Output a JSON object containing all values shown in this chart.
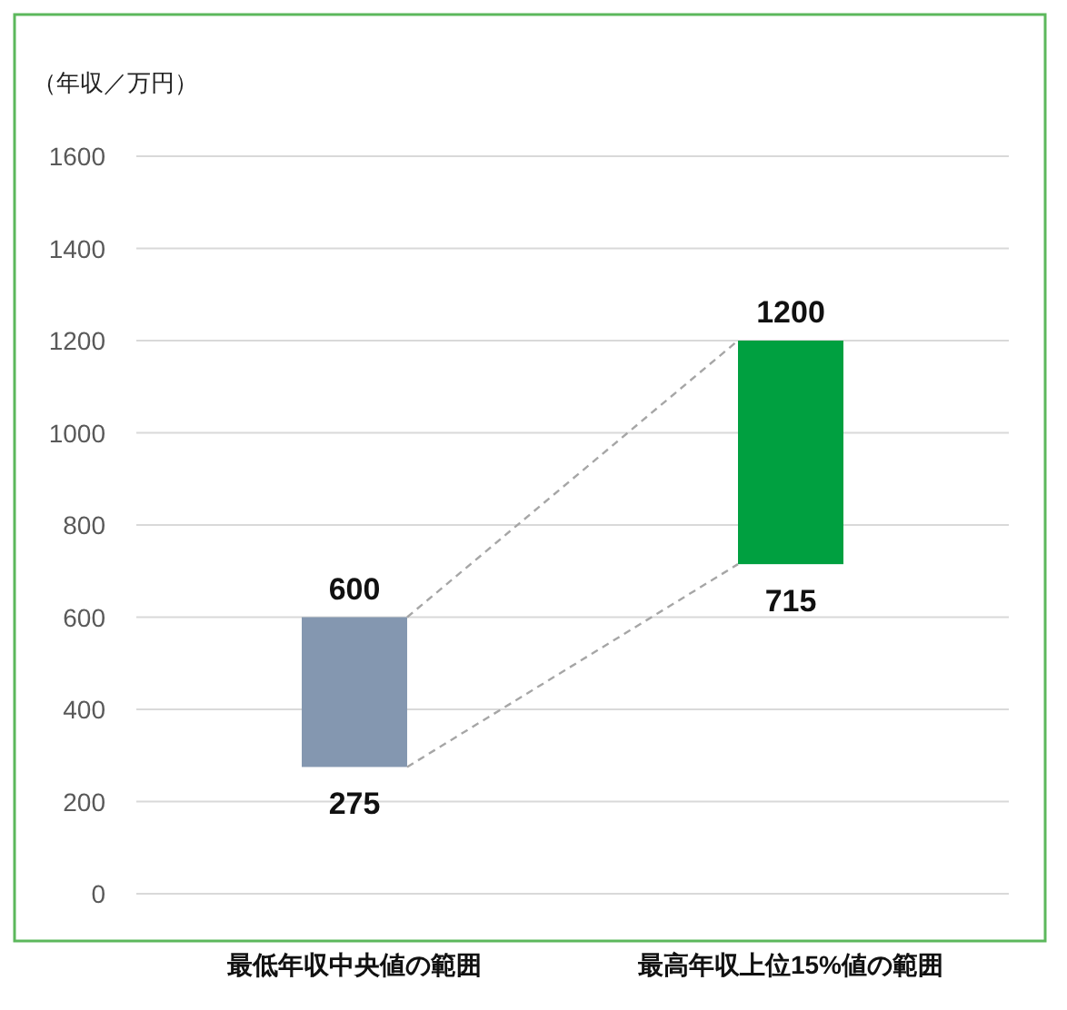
{
  "chart_data": {
    "type": "bar",
    "ylabel": "（年収／万円）",
    "categories": [
      "最低年収中央値の範囲",
      "最高年収上位15%値の範囲"
    ],
    "base": [
      275,
      715
    ],
    "values": [
      325,
      485
    ],
    "colors": [
      "#8497b0",
      "#00a040"
    ],
    "ylim": [
      0,
      1600
    ],
    "yticks": [
      0,
      200,
      400,
      600,
      800,
      1000,
      1200,
      1400,
      1600
    ],
    "grid": "y",
    "annotations": [
      {
        "text": "600",
        "x": "最低年収中央値の範囲",
        "y": 600
      },
      {
        "text": "275",
        "x": "最低年収中央値の範囲",
        "y": 275
      },
      {
        "text": "1200",
        "x": "最高年収上位15%値の範囲",
        "y": 1200
      },
      {
        "text": "715",
        "x": "最高年収上位15%値の範囲",
        "y": 715
      }
    ]
  }
}
